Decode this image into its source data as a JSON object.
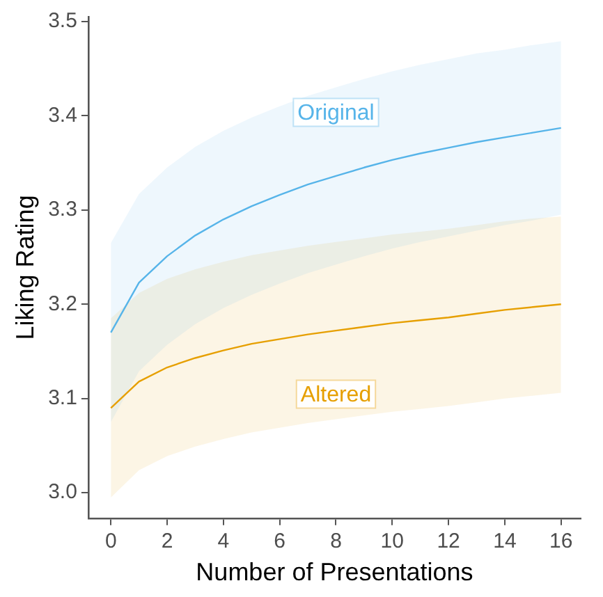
{
  "chart_data": {
    "type": "line",
    "xlabel": "Number of Presentations",
    "ylabel": "Liking Rating",
    "x": [
      0,
      1,
      2,
      3,
      4,
      5,
      6,
      7,
      8,
      9,
      10,
      11,
      12,
      13,
      14,
      15,
      16
    ],
    "series": [
      {
        "name": "Original",
        "color": "#56b4e9",
        "values": [
          3.17,
          3.223,
          3.251,
          3.273,
          3.29,
          3.304,
          3.316,
          3.327,
          3.336,
          3.345,
          3.353,
          3.36,
          3.366,
          3.372,
          3.377,
          3.382,
          3.387
        ],
        "upper": [
          3.265,
          3.317,
          3.345,
          3.367,
          3.384,
          3.398,
          3.41,
          3.421,
          3.43,
          3.439,
          3.447,
          3.454,
          3.46,
          3.466,
          3.47,
          3.475,
          3.479
        ],
        "lower": [
          3.075,
          3.129,
          3.157,
          3.179,
          3.196,
          3.21,
          3.222,
          3.233,
          3.242,
          3.251,
          3.259,
          3.266,
          3.272,
          3.278,
          3.284,
          3.289,
          3.295
        ]
      },
      {
        "name": "Altered",
        "color": "#e69f00",
        "values": [
          3.09,
          3.118,
          3.133,
          3.143,
          3.151,
          3.158,
          3.163,
          3.168,
          3.172,
          3.176,
          3.18,
          3.183,
          3.186,
          3.19,
          3.194,
          3.197,
          3.2
        ],
        "upper": [
          3.185,
          3.212,
          3.227,
          3.237,
          3.245,
          3.252,
          3.257,
          3.262,
          3.266,
          3.27,
          3.274,
          3.277,
          3.28,
          3.284,
          3.288,
          3.291,
          3.293
        ],
        "lower": [
          2.995,
          3.024,
          3.039,
          3.049,
          3.057,
          3.064,
          3.069,
          3.074,
          3.078,
          3.082,
          3.086,
          3.089,
          3.092,
          3.096,
          3.1,
          3.103,
          3.106
        ]
      }
    ],
    "xlim": [
      -0.8,
      16.7
    ],
    "xticks": [
      0,
      2,
      4,
      6,
      8,
      10,
      12,
      14,
      16
    ],
    "ylim": [
      2.973,
      3.505
    ],
    "yticks": [
      {
        "value": 3,
        "label": "3.0"
      },
      3.1,
      3.2,
      3.3,
      3.4,
      3.5
    ],
    "grid": false,
    "legend": false,
    "marker": "none",
    "line_style": "solid"
  }
}
